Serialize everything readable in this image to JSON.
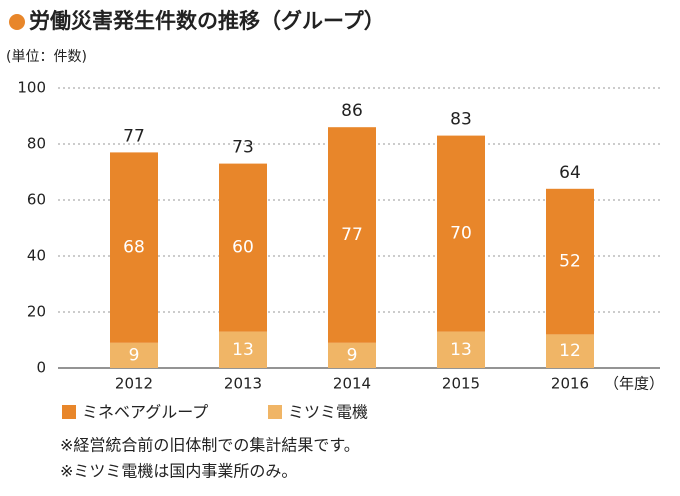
{
  "chart_data": {
    "type": "stacked_bar",
    "title": "労働災害発生件数の推移（グループ）",
    "unit_label": "(単位：件数)",
    "x_unit_label": "（年度）",
    "categories": [
      "2012",
      "2013",
      "2014",
      "2015",
      "2016"
    ],
    "series": [
      {
        "name": "ミネベアグループ",
        "color": "#e8862a",
        "values": [
          68,
          60,
          77,
          70,
          52
        ]
      },
      {
        "name": "ミツミ電機",
        "color": "#f0b566",
        "values": [
          9,
          13,
          9,
          13,
          12
        ]
      }
    ],
    "totals": [
      77,
      73,
      86,
      83,
      64
    ],
    "ylim": [
      0,
      100
    ],
    "yticks": [
      0,
      20,
      40,
      60,
      80,
      100
    ],
    "grid": true,
    "notes": [
      "※経営統合前の旧体制での集計結果です。",
      "※ミツミ電機は国内事業所のみ。"
    ]
  }
}
